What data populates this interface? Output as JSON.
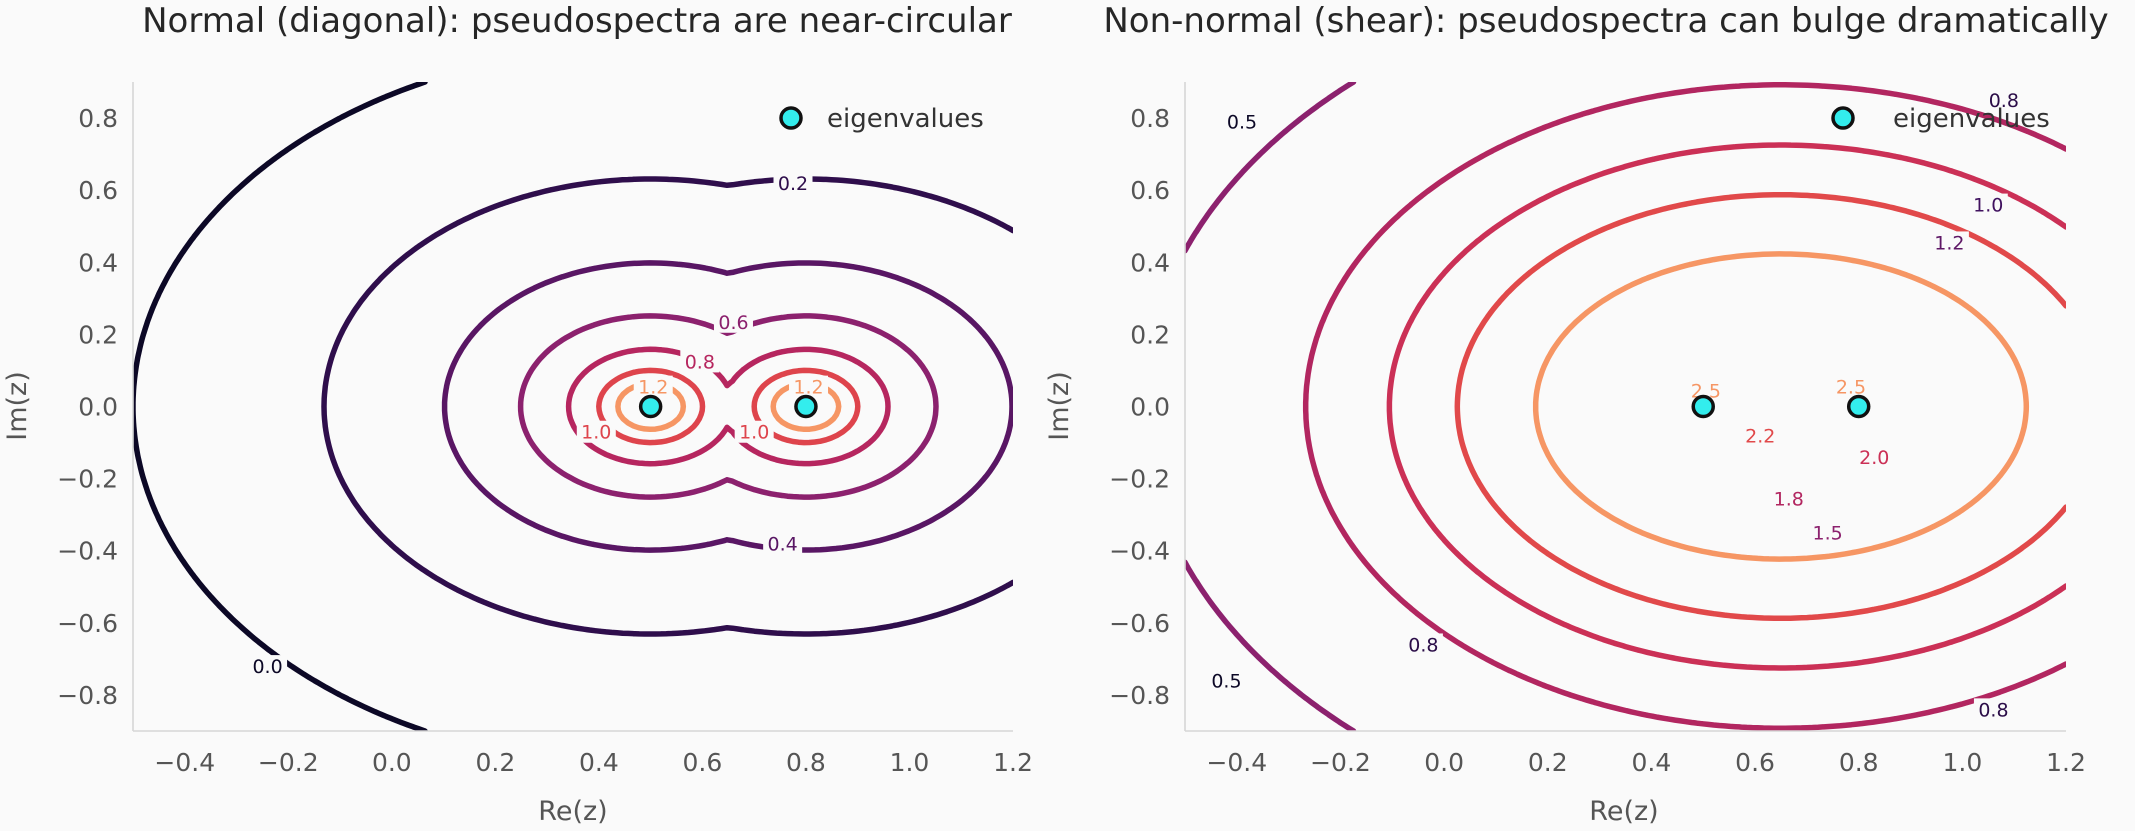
{
  "chart_data": [
    {
      "type": "contour",
      "title": "Normal (diagonal): pseudospectra are near-circular",
      "xlabel": "Re(z)",
      "ylabel": "Im(z)",
      "xlim": [
        -0.5,
        1.2
      ],
      "ylim": [
        -0.9,
        0.9
      ],
      "xticks": [
        "−0.4",
        "−0.2",
        "0.0",
        "0.2",
        "0.4",
        "0.6",
        "0.8",
        "1.0",
        "1.2"
      ],
      "xtick_values": [
        -0.4,
        -0.2,
        0.0,
        0.2,
        0.4,
        0.6,
        0.8,
        1.0,
        1.2
      ],
      "yticks": [
        "−0.8",
        "−0.6",
        "−0.4",
        "−0.2",
        "0.0",
        "0.2",
        "0.4",
        "0.6",
        "0.8"
      ],
      "ytick_values": [
        -0.8,
        -0.6,
        -0.4,
        -0.2,
        0.0,
        0.2,
        0.4,
        0.6,
        0.8
      ],
      "eigenvalues": [
        [
          0.5,
          0.0
        ],
        [
          0.8,
          0.0
        ]
      ],
      "legend": "eigenvalues",
      "contour_levels": [
        0.0,
        0.2,
        0.4,
        0.6,
        0.8,
        1.0,
        1.2
      ],
      "contour_labels": [
        {
          "text": "0.2",
          "x": 0.775,
          "y": 0.62
        },
        {
          "text": "0.4",
          "x": 0.755,
          "y": -0.38
        },
        {
          "text": "0.6",
          "x": 0.66,
          "y": 0.235
        },
        {
          "text": "0.8",
          "x": 0.595,
          "y": 0.125
        },
        {
          "text": "1.0",
          "x": 0.395,
          "y": -0.07
        },
        {
          "text": "1.2",
          "x": 0.505,
          "y": 0.055
        },
        {
          "text": "1.0",
          "x": 0.7,
          "y": -0.07
        },
        {
          "text": "1.2",
          "x": 0.805,
          "y": 0.055
        },
        {
          "text": "0.0",
          "x": -0.24,
          "y": -0.72
        }
      ]
    },
    {
      "type": "contour",
      "title": "Non-normal (shear): pseudospectra can bulge dramatically",
      "xlabel": "Re(z)",
      "ylabel": "Im(z)",
      "xlim": [
        -0.5,
        1.2
      ],
      "ylim": [
        -0.9,
        0.9
      ],
      "xticks": [
        "−0.4",
        "−0.2",
        "0.0",
        "0.2",
        "0.4",
        "0.6",
        "0.8",
        "1.0",
        "1.2"
      ],
      "xtick_values": [
        -0.4,
        -0.2,
        0.0,
        0.2,
        0.4,
        0.6,
        0.8,
        1.0,
        1.2
      ],
      "yticks": [
        "−0.8",
        "−0.6",
        "−0.4",
        "−0.2",
        "0.0",
        "0.2",
        "0.4",
        "0.6",
        "0.8"
      ],
      "ytick_values": [
        -0.8,
        -0.6,
        -0.4,
        -0.2,
        0.0,
        0.2,
        0.4,
        0.6,
        0.8
      ],
      "eigenvalues": [
        [
          0.5,
          0.0
        ],
        [
          0.8,
          0.0
        ]
      ],
      "legend": "eigenvalues",
      "contour_levels": [
        0.5,
        0.8,
        1.0,
        1.2,
        1.5,
        1.8,
        2.0,
        2.2,
        2.5
      ],
      "contour_labels": [
        {
          "text": "0.5",
          "x": -0.39,
          "y": 0.79
        },
        {
          "text": "0.8",
          "x": 1.08,
          "y": 0.85
        },
        {
          "text": "1.0",
          "x": 1.05,
          "y": 0.56
        },
        {
          "text": "1.2",
          "x": 0.975,
          "y": 0.455
        },
        {
          "text": "0.8",
          "x": -0.04,
          "y": -0.66
        },
        {
          "text": "0.5",
          "x": -0.42,
          "y": -0.76
        },
        {
          "text": "0.8",
          "x": 1.06,
          "y": -0.84
        },
        {
          "text": "2.5",
          "x": 0.505,
          "y": 0.045
        },
        {
          "text": "2.5",
          "x": 0.785,
          "y": 0.055
        },
        {
          "text": "2.2",
          "x": 0.61,
          "y": -0.08
        },
        {
          "text": "2.0",
          "x": 0.83,
          "y": -0.14
        },
        {
          "text": "1.8",
          "x": 0.665,
          "y": -0.255
        },
        {
          "text": "1.5",
          "x": 0.74,
          "y": -0.35
        }
      ]
    }
  ]
}
